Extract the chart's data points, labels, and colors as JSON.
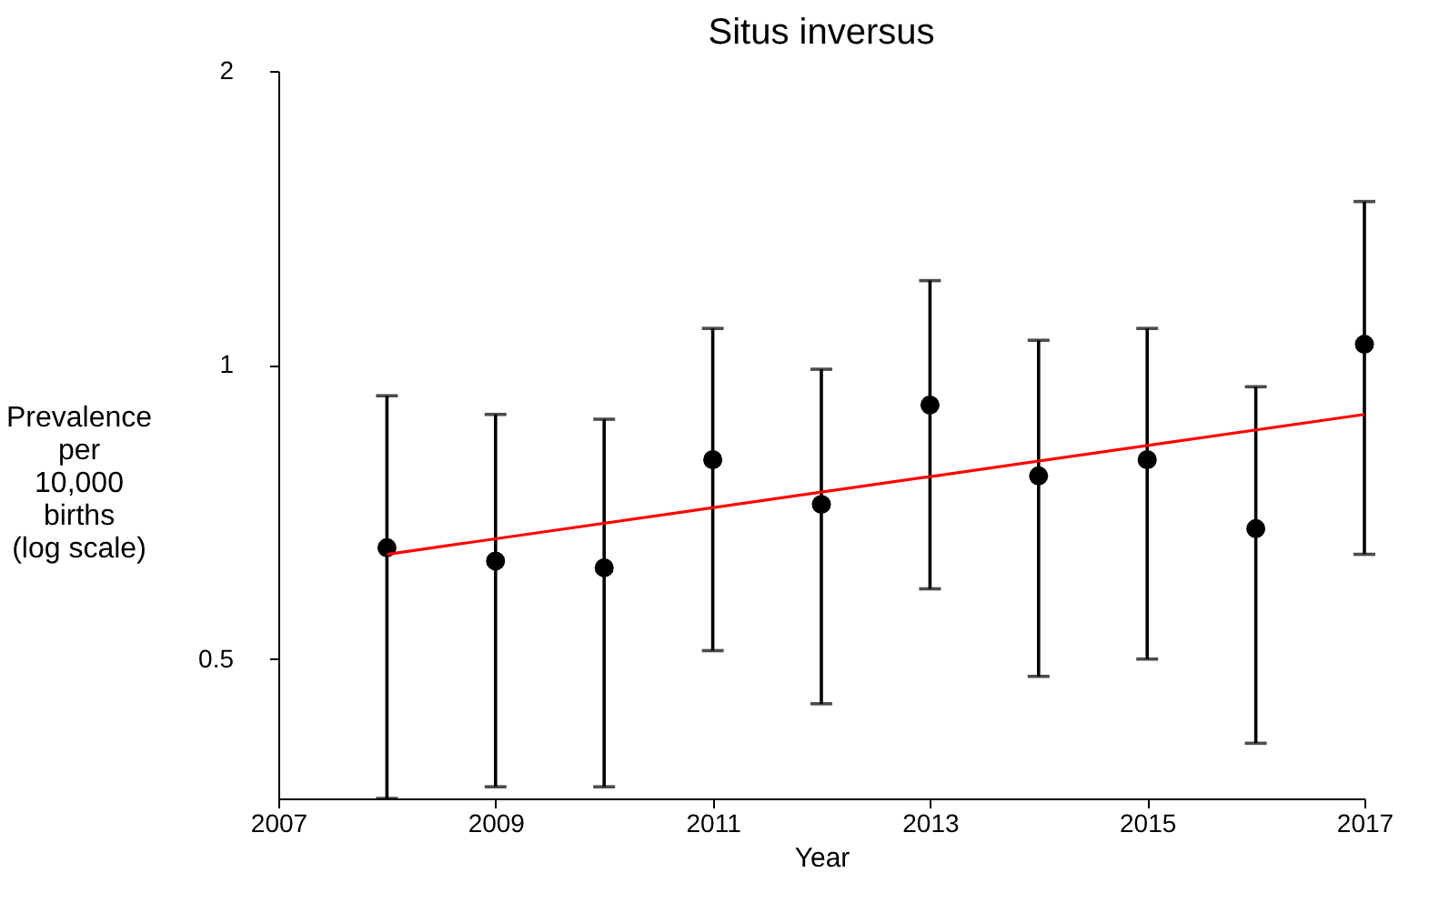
{
  "chart_data": {
    "type": "scatter",
    "title": "Situs inversus",
    "xlabel": "Year",
    "ylabel": "Prevalence\nper\n10,000\nbirths\n(log scale)",
    "log": "y",
    "xlim": [
      2007,
      2017
    ],
    "xticks": [
      2007,
      2009,
      2011,
      2013,
      2015,
      2017
    ],
    "ylim": [
      0.36,
      2
    ],
    "yticks": [
      0.5,
      1,
      2
    ],
    "grid": false,
    "marker": "circle",
    "series": [
      {
        "color": "#000000",
        "x": [
          2008,
          2009,
          2010,
          2011,
          2012,
          2013,
          2014,
          2015,
          2016,
          2017
        ],
        "values": [
          0.65,
          0.63,
          0.62,
          0.8,
          0.72,
          0.91,
          0.77,
          0.8,
          0.68,
          1.05
        ],
        "errors": [
          [
            0.36,
            0.93
          ],
          [
            0.37,
            0.89
          ],
          [
            0.37,
            0.88
          ],
          [
            0.51,
            1.09
          ],
          [
            0.45,
            0.99
          ],
          [
            0.59,
            1.22
          ],
          [
            0.48,
            1.06
          ],
          [
            0.5,
            1.09
          ],
          [
            0.41,
            0.95
          ],
          [
            0.64,
            1.47
          ]
        ]
      },
      {
        "type": "line",
        "marker": "none",
        "color": "#ff0000",
        "x": [
          2008,
          2017
        ],
        "values": [
          0.64,
          0.89
        ]
      }
    ]
  }
}
